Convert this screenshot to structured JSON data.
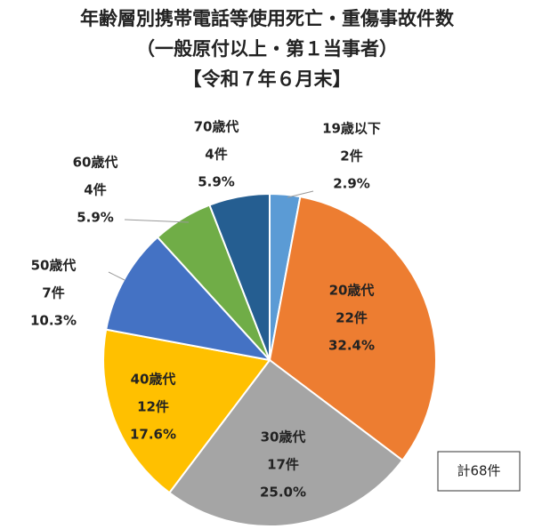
{
  "chart_data": {
    "type": "pie",
    "title": "年齢層別携帯電話等使用死亡・重傷事故件数",
    "subtitle": "（一般原付以上・第１当事者）",
    "period": "【令和７年６月末】",
    "categories": [
      "19歳以下",
      "20歳代",
      "30歳代",
      "40歳代",
      "50歳代",
      "60歳代",
      "70歳代"
    ],
    "values": [
      2,
      22,
      17,
      12,
      7,
      4,
      4
    ],
    "value_labels": [
      "2件",
      "22件",
      "17件",
      "12件",
      "7件",
      "4件",
      "4件"
    ],
    "percent_labels": [
      "2.9%",
      "32.4%",
      "25.0%",
      "17.6%",
      "10.3%",
      "5.9%",
      "5.9%"
    ],
    "colors": [
      "#5b9bd5",
      "#ed7d31",
      "#a5a5a5",
      "#ffc000",
      "#4472c4",
      "#70ad47",
      "#255e91"
    ],
    "total_label": "計68件"
  }
}
